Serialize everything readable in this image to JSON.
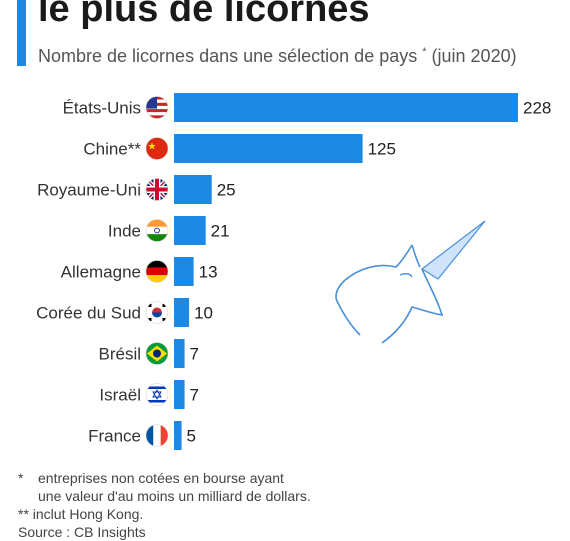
{
  "header": {
    "title": "le plus de licornes",
    "subtitle": "Nombre de licornes dans une sélection de pays",
    "subtitle_mark": "*",
    "subtitle_suffix": " (juin 2020)",
    "accent_color": "#1e88e5"
  },
  "chart_data": {
    "type": "bar",
    "orientation": "horizontal",
    "bar_color": "#1e88e5",
    "categories": [
      "États-Unis",
      "Chine**",
      "Royaume-Uni",
      "Inde",
      "Allemagne",
      "Corée du Sud",
      "Brésil",
      "Israël",
      "France"
    ],
    "flags": [
      "us",
      "cn",
      "gb",
      "in",
      "de",
      "kr",
      "br",
      "il",
      "fr"
    ],
    "values": [
      228,
      125,
      25,
      21,
      13,
      10,
      7,
      7,
      5
    ],
    "xlim": [
      0,
      228
    ],
    "grid": false,
    "legend": "none"
  },
  "footnotes": {
    "note1_mark": "*",
    "note1_line1": "entreprises non cotées en bourse ayant",
    "note1_line2": "une valeur d'au moins un milliard de dollars.",
    "note2": "** inclut Hong Kong.",
    "source": "Source : CB Insights"
  }
}
